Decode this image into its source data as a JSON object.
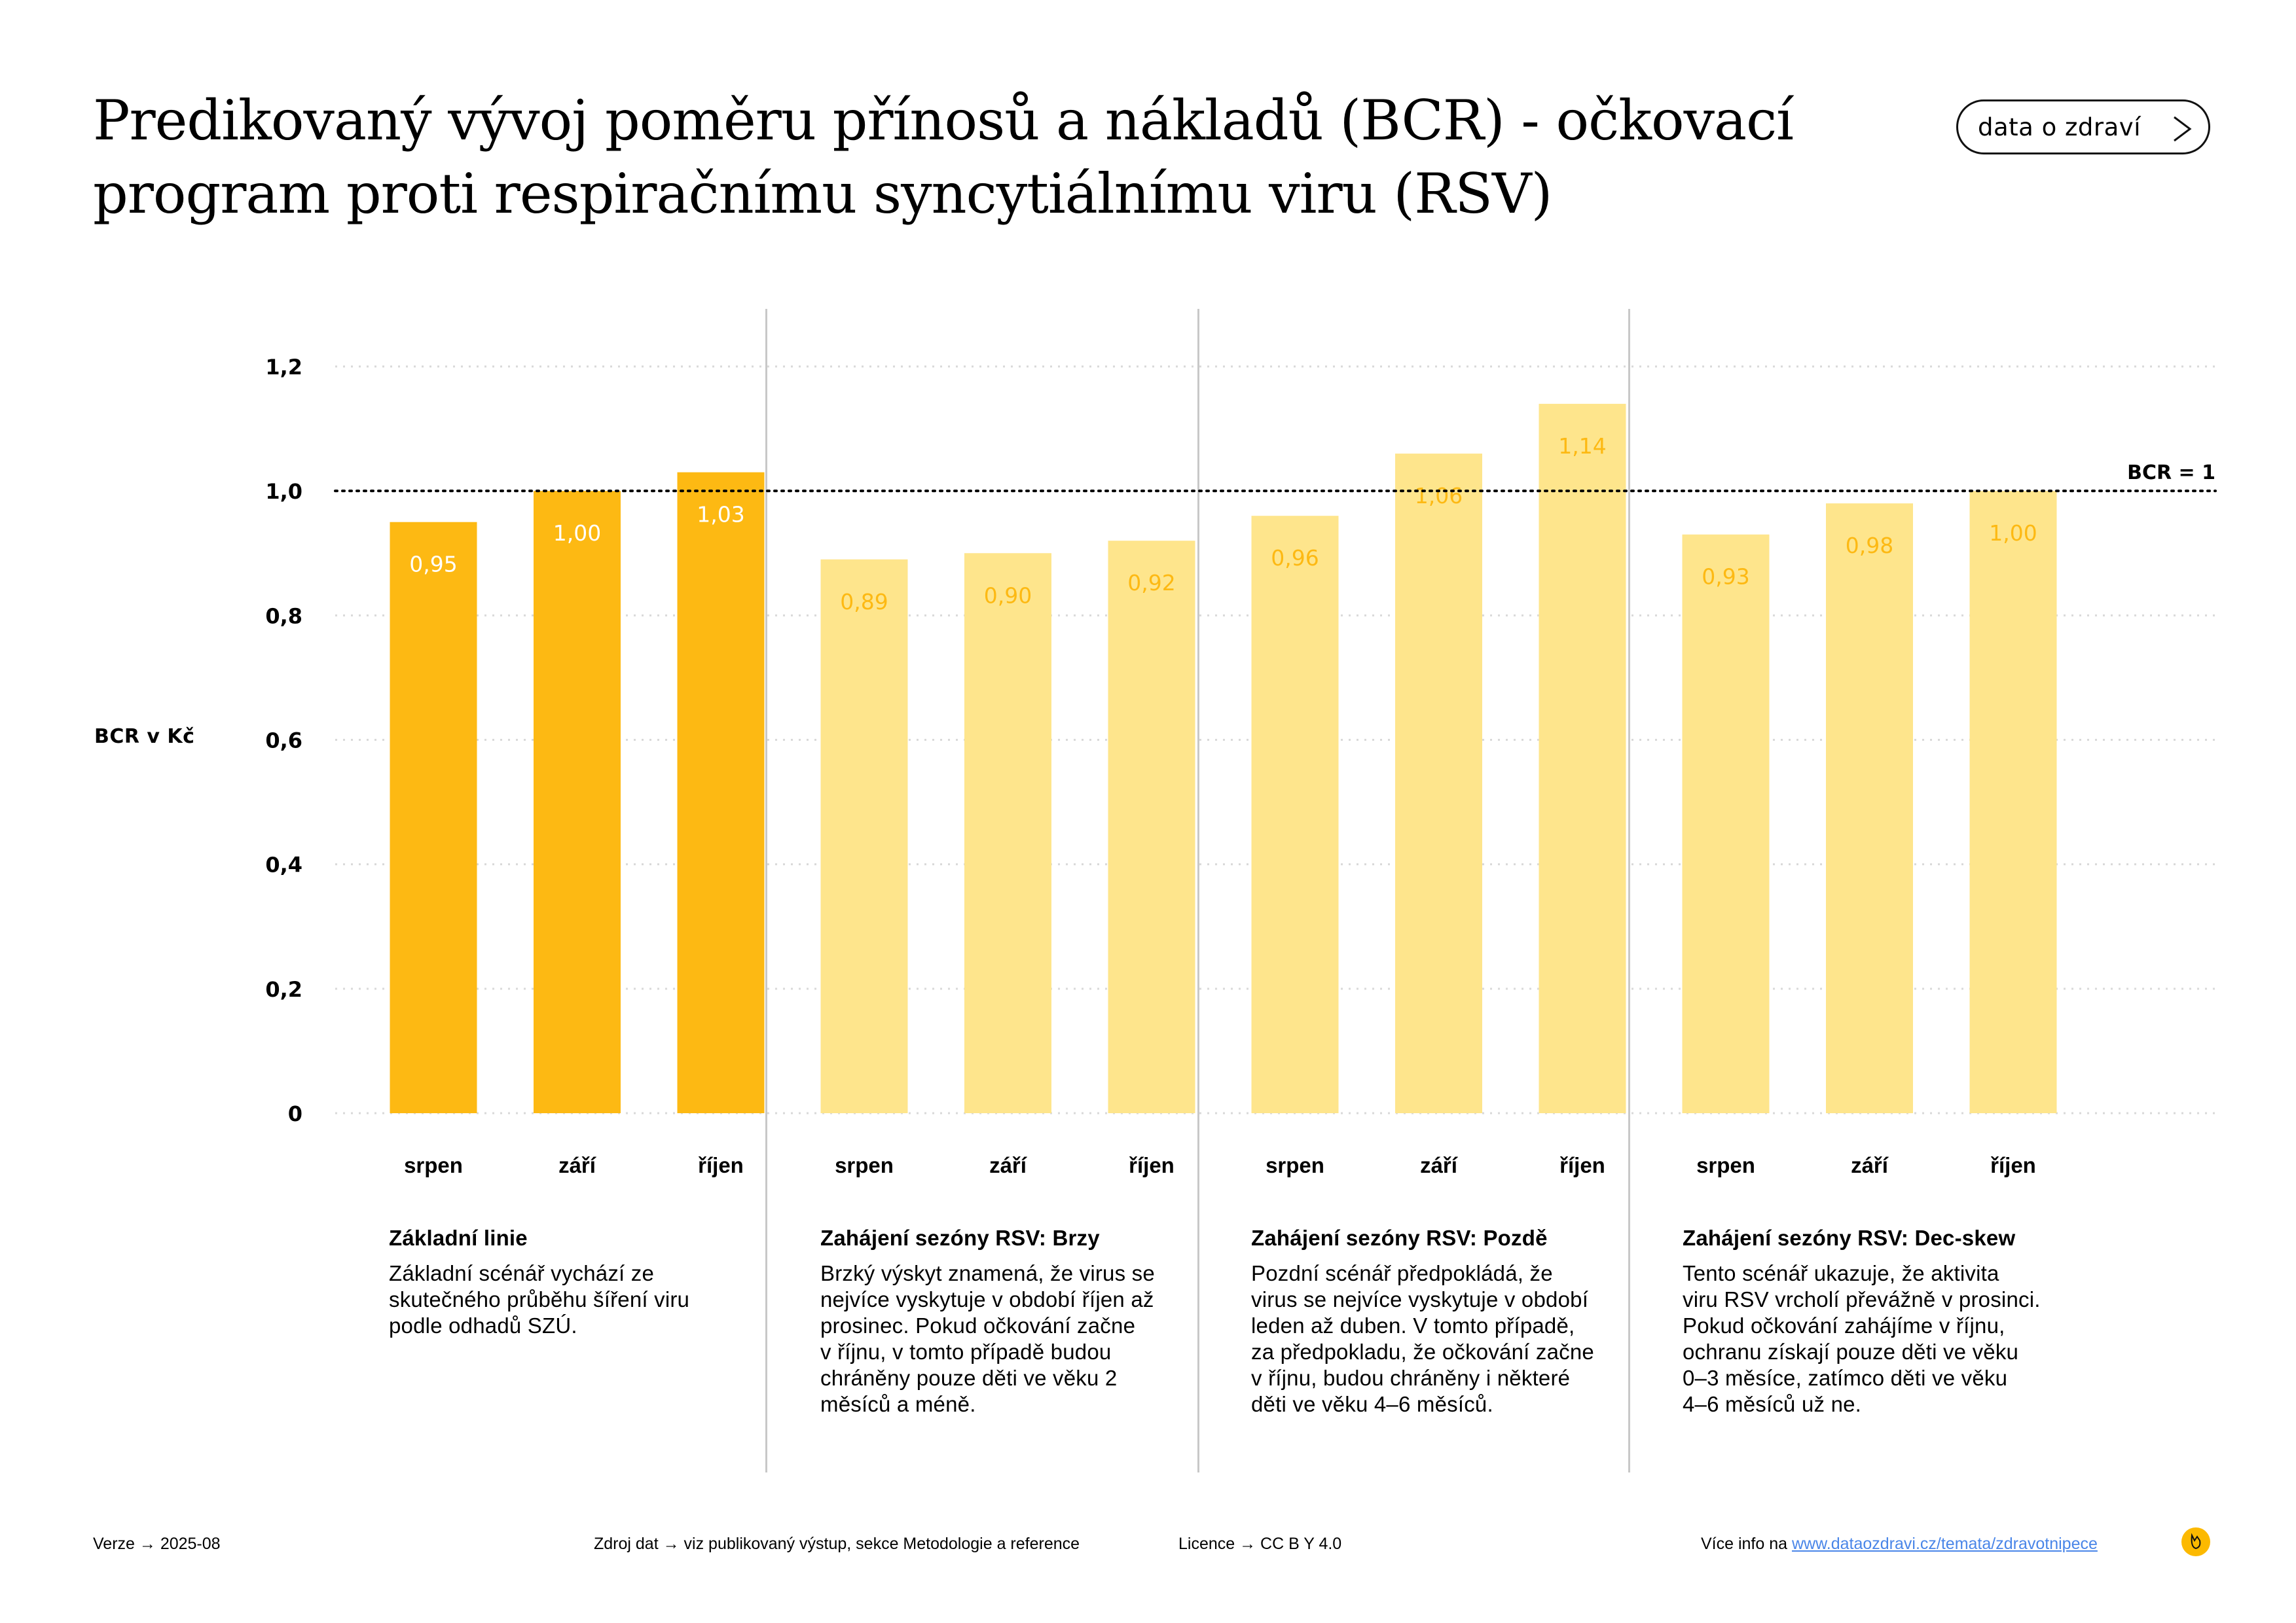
{
  "header": {
    "title_lines": [
      "Predikovaný vývoj poměru přínosů a nákladů (BCR) - očkovací",
      "program proti respiračnímu syncytiálnímu viru (RSV)"
    ],
    "button_label": "data o zdraví",
    "button_icon": "chevron-right-icon"
  },
  "colors": {
    "primary": "#fdb913",
    "secondary": "#fee58c",
    "secondary_label": "#fdb913",
    "primary_label": "#ffffff",
    "grid": "#d9d9d9",
    "divider": "#c8c8c8",
    "link": "#4a86e8"
  },
  "chart_data": {
    "type": "bar",
    "title": "Predikovaný vývoj poměru přínosů a nákladů (BCR) - očkovací program proti respiračnímu syncytiálnímu viru (RSV)",
    "xlabel": "",
    "ylabel": "BCR v Kč",
    "ylim": [
      0,
      1.2
    ],
    "yticks": [
      0,
      0.2,
      0.4,
      0.6,
      0.8,
      1.0,
      1.2
    ],
    "ytick_labels": [
      "0",
      "0,2",
      "0,4",
      "0,6",
      "0,8",
      "1,0",
      "1,2"
    ],
    "grid": true,
    "reference_line": {
      "value": 1.0,
      "label": "BCR = 1",
      "style": "dotted"
    },
    "categories": [
      "srpen",
      "září",
      "říjen"
    ],
    "groups": [
      {
        "name": "Základní linie",
        "highlight": true,
        "values": [
          0.95,
          1.0,
          1.03
        ],
        "labels": [
          "0,95",
          "1,00",
          "1,03"
        ]
      },
      {
        "name": "Zahájení sezóny RSV: Brzy",
        "highlight": false,
        "values": [
          0.89,
          0.9,
          0.92
        ],
        "labels": [
          "0,89",
          "0,90",
          "0,92"
        ]
      },
      {
        "name": "Zahájení sezóny RSV: Pozdě",
        "highlight": false,
        "values": [
          0.96,
          1.06,
          1.14
        ],
        "labels": [
          "0,96",
          "1,06",
          "1,14"
        ]
      },
      {
        "name": "Zahájení sezóny RSV: Dec-skew",
        "highlight": false,
        "values": [
          0.93,
          0.98,
          1.0
        ],
        "labels": [
          "0,93",
          "0,98",
          "1,00"
        ]
      }
    ]
  },
  "scenarios": [
    {
      "title": "Základní linie",
      "lines": [
        "Základní scénář vychází ze",
        "skutečného průběhu šíření viru",
        "podle odhadů SZÚ."
      ]
    },
    {
      "title": "Zahájení sezóny RSV: Brzy",
      "lines": [
        "Brzký výskyt znamená, že virus se",
        "nejvíce vyskytuje v období říjen až",
        "prosinec. Pokud očkování začne",
        "v říjnu, v tomto případě budou",
        "chráněny pouze děti ve věku 2",
        "měsíců a méně."
      ]
    },
    {
      "title": "Zahájení sezóny RSV: Pozdě",
      "lines": [
        "Pozdní scénář předpokládá, že",
        "virus se nejvíce vyskytuje v období",
        "leden až duben. V tomto případě,",
        "za předpokladu, že očkování začne",
        "v říjnu, budou chráněny i některé",
        "děti ve věku 4–6 měsíců."
      ]
    },
    {
      "title": "Zahájení sezóny RSV: Dec-skew",
      "lines": [
        "Tento scénář ukazuje, že aktivita",
        "viru RSV vrcholí převážně v prosinci.",
        "Pokud očkování zahájíme v říjnu,",
        "ochranu získají pouze děti ve věku",
        "0–3 měsíce, zatímco děti ve věku",
        "4–6 měsíců už ne."
      ]
    }
  ],
  "footer": {
    "version": "Verze  →  2025-08",
    "source": "Zdroj dat  →  viz publikovaný výstup, sekce Metodologie a reference",
    "license": "Licence  →  CC B Y 4.0",
    "more_info_prefix": "Více info na ",
    "more_info_link": "www.dataozdravi.cz/temata/zdravotnipece",
    "logo_icon": "brand-logo-icon"
  }
}
